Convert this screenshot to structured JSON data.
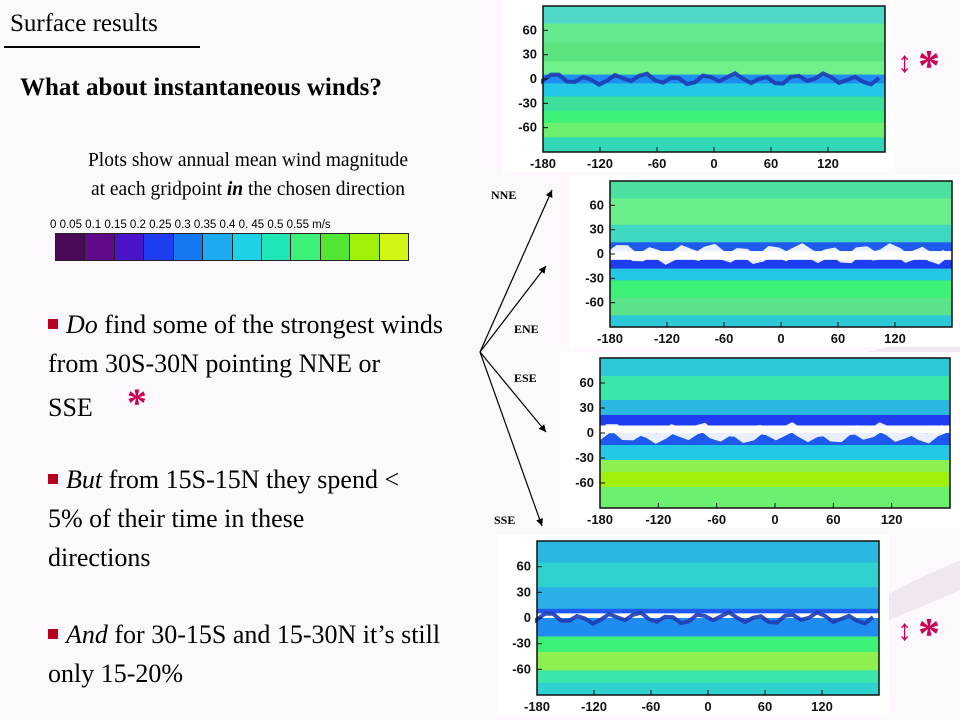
{
  "slide": {
    "title": "Surface results",
    "subheading": "What about instantaneous winds?",
    "caption_line1": "Plots show annual mean wind magnitude",
    "caption_line2_pre": "at each gridpoint ",
    "caption_line2_emph": "in",
    "caption_line2_post": " the chosen direction"
  },
  "colorbar": {
    "tick_text": "0    0.05    0.1  0.15  0.2  0.25  0.3  0.35  0.4  0. 45  0.5  0.55 m/s",
    "colors": [
      "#4b0a57",
      "#600a8a",
      "#4a14c8",
      "#1e3cf0",
      "#1478f0",
      "#1eaaf0",
      "#1ed2e6",
      "#1ee6b4",
      "#3cf078",
      "#50e632",
      "#a0f00a",
      "#d2f514"
    ]
  },
  "bullets": [
    {
      "emph": "Do",
      "text": " find some of the strongest winds from 30S-30N pointing NNE or SSE",
      "star": "*"
    },
    {
      "emph": "But",
      "text": " from 15S-15N they spend < 5% of their time in these directions",
      "star": ""
    },
    {
      "emph": "And",
      "text": " for 30-15S and 15-30N it’s still only 15-20%",
      "star": ""
    }
  ],
  "directions": [
    "NNE",
    "ENE",
    "ESE",
    "SSE"
  ],
  "plot_axes": {
    "y_ticks": [
      "60",
      "30",
      "0",
      "-30",
      "-60"
    ],
    "x_ticks": [
      "-180",
      "-120",
      "-60",
      "0",
      "60",
      "120"
    ]
  },
  "markers": {
    "arrow": "↕",
    "star": "*"
  },
  "colors": {
    "bullet": "#b4001e",
    "star": "#cc0055"
  }
}
